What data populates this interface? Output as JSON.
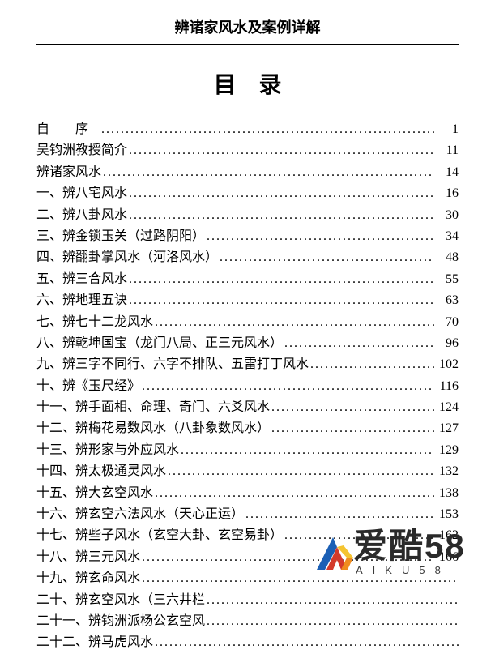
{
  "header": {
    "title": "辨诸家风水及案例详解"
  },
  "toc": {
    "heading": "目录",
    "entries": [
      {
        "label": "自  序",
        "page": "1",
        "spaced": true
      },
      {
        "label": "吴钧洲教授简介",
        "page": "11",
        "spaced": false
      },
      {
        "label": "辨诸家风水",
        "page": "14",
        "spaced": false
      },
      {
        "label": "一、辨八宅风水",
        "page": "16",
        "spaced": false
      },
      {
        "label": "二、辨八卦风水",
        "page": "30",
        "spaced": false
      },
      {
        "label": "三、辨金锁玉关（过路阴阳）",
        "page": "34",
        "spaced": false
      },
      {
        "label": "四、辨翻卦掌风水（河洛风水）",
        "page": "48",
        "spaced": false
      },
      {
        "label": "五、辨三合风水",
        "page": "55",
        "spaced": false
      },
      {
        "label": "六、辨地理五诀",
        "page": "63",
        "spaced": false
      },
      {
        "label": "七、辨七十二龙风水",
        "page": "70",
        "spaced": false
      },
      {
        "label": "八、辨乾坤国宝（龙门八局、正三元风水）",
        "page": "96",
        "spaced": false
      },
      {
        "label": "九、辨三字不同行、六字不排队、五雷打丁风水",
        "page": "102",
        "spaced": false
      },
      {
        "label": "十、辨《玉尺经》",
        "page": "116",
        "spaced": false
      },
      {
        "label": "十一、辨手面相、命理、奇门、六爻风水",
        "page": "124",
        "spaced": false
      },
      {
        "label": "十二、辨梅花易数风水（八卦象数风水）",
        "page": "127",
        "spaced": false
      },
      {
        "label": "十三、辨形家与外应风水",
        "page": "129",
        "spaced": false
      },
      {
        "label": "十四、辨太极通灵风水",
        "page": "132",
        "spaced": false
      },
      {
        "label": "十五、辨大玄空风水",
        "page": "138",
        "spaced": false
      },
      {
        "label": "十六、辨玄空六法风水（天心正运）",
        "page": "153",
        "spaced": false
      },
      {
        "label": "十七、辨些子风水（玄空大卦、玄空易卦）",
        "page": "162",
        "spaced": false
      },
      {
        "label": "十八、辨三元风水",
        "page": "166",
        "spaced": false
      },
      {
        "label": "十九、辨玄命风水",
        "page": "",
        "spaced": false
      },
      {
        "label": "二十、辨玄空风水（三六井栏",
        "page": "",
        "spaced": false
      },
      {
        "label": "二十一、辨钧洲派杨公玄空风",
        "page": "",
        "spaced": false
      },
      {
        "label": "二十二、辨马虎风水",
        "page": "",
        "spaced": false
      }
    ]
  },
  "watermark": {
    "main": "爱酷58",
    "sub": "AIKU58",
    "logo_colors": {
      "blue": "#1b5fb5",
      "orange": "#f08c1e",
      "red": "#d43a2b",
      "yellow": "#f4c430"
    }
  }
}
